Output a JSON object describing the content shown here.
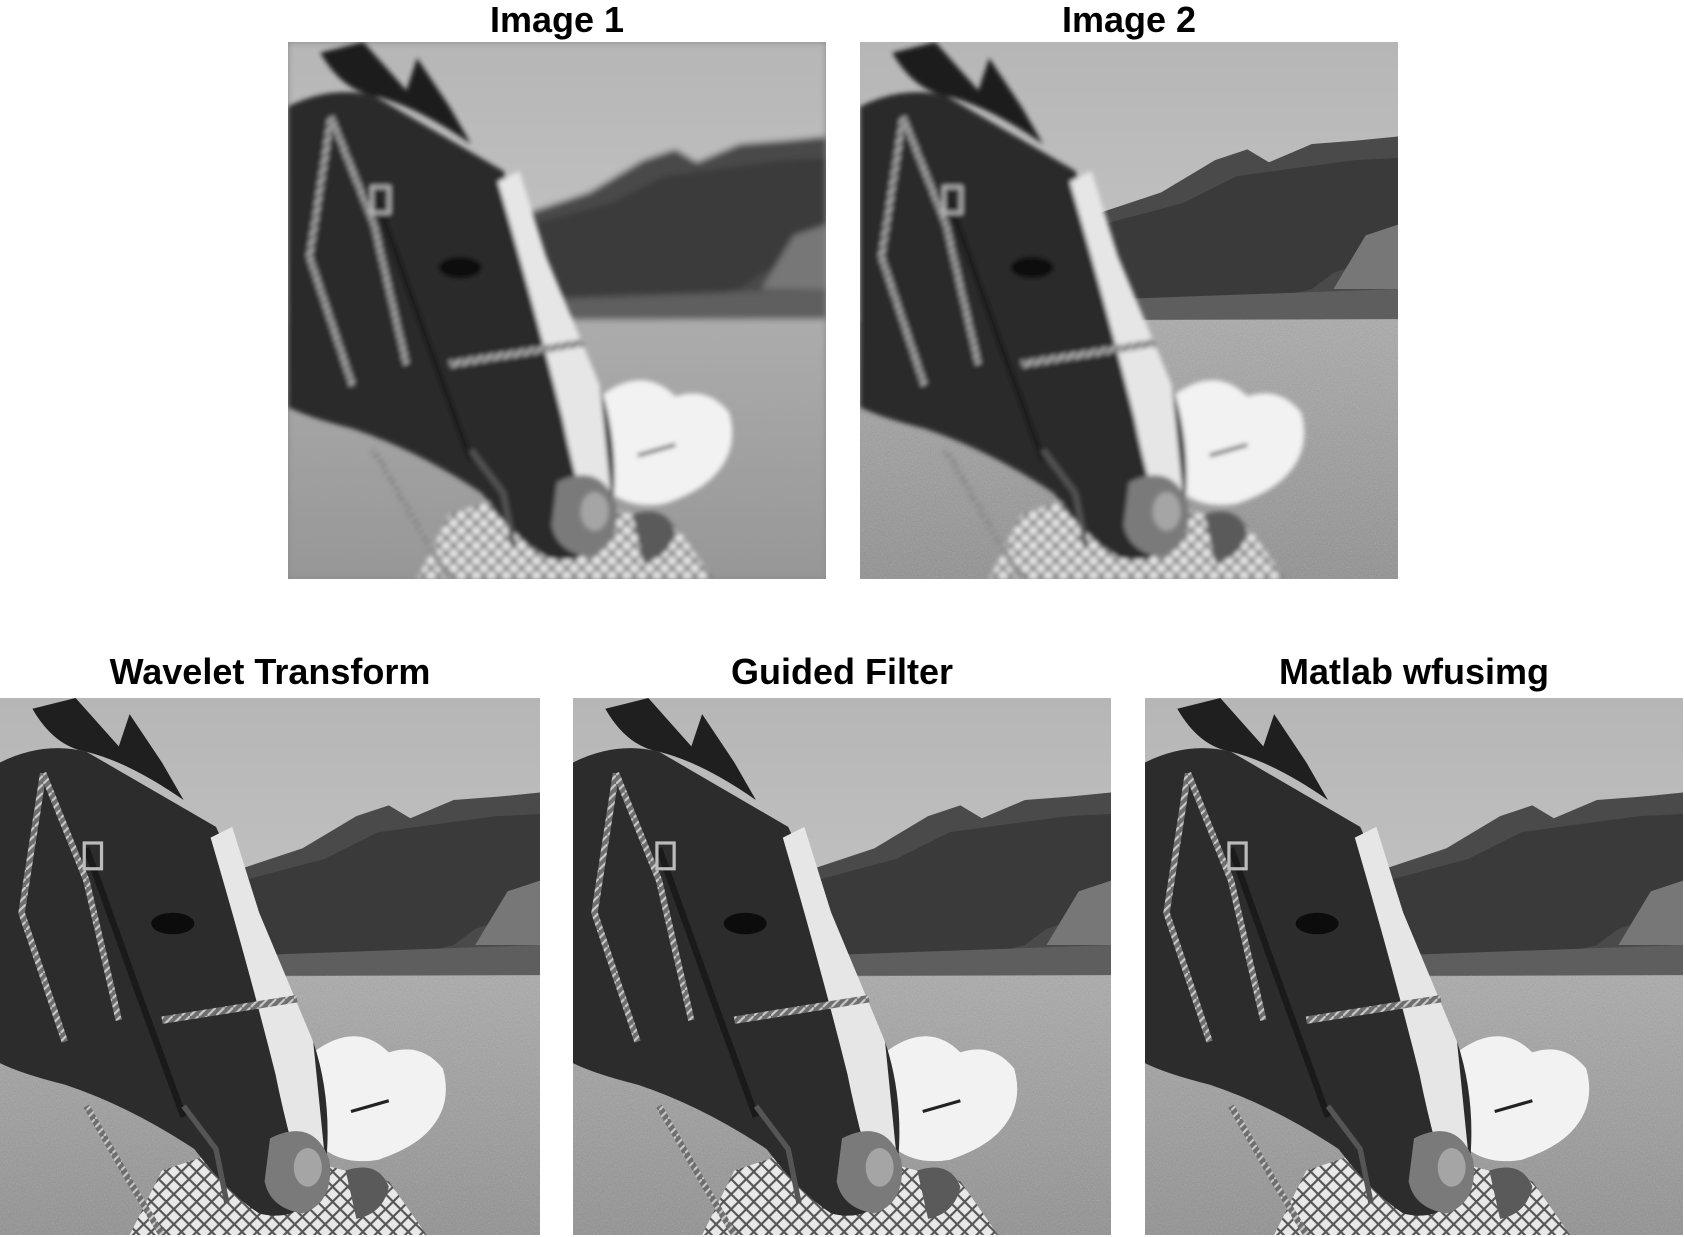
{
  "figure": {
    "panels": [
      {
        "id": "image1",
        "title": "Image 1",
        "style": "blurred"
      },
      {
        "id": "image2",
        "title": "Image 2",
        "style": "sharp"
      },
      {
        "id": "wavelet",
        "title": "Wavelet Transform",
        "style": "fused"
      },
      {
        "id": "guided",
        "title": "Guided Filter",
        "style": "fused"
      },
      {
        "id": "wfusimg",
        "title": "Matlab wfusimg",
        "style": "fused"
      }
    ]
  }
}
